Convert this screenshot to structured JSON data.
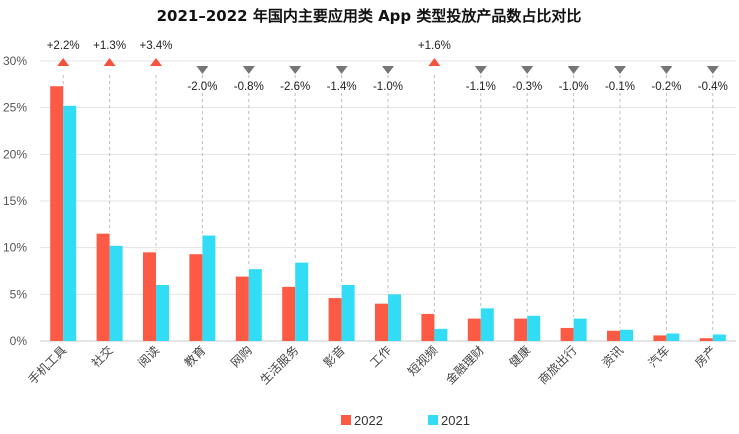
{
  "chart_data": {
    "type": "bar",
    "title": "2021–2022 年国内主要应用类 App 类型投放产品数占比对比",
    "categories": [
      "手机工具",
      "社交",
      "阅读",
      "教育",
      "网购",
      "生活服务",
      "影音",
      "工作",
      "短视频",
      "金融理财",
      "健康",
      "商旅出行",
      "资讯",
      "汽车",
      "房产"
    ],
    "series": [
      {
        "name": "2022",
        "color": "#fd5a45",
        "values": [
          27.3,
          11.5,
          9.5,
          9.3,
          6.9,
          5.8,
          4.6,
          4.0,
          2.9,
          2.4,
          2.4,
          1.4,
          1.1,
          0.6,
          0.3
        ]
      },
      {
        "name": "2021",
        "color": "#33dcf5",
        "values": [
          25.2,
          10.2,
          6.0,
          11.3,
          7.7,
          8.4,
          6.0,
          5.0,
          1.3,
          3.5,
          2.7,
          2.4,
          1.2,
          0.8,
          0.7
        ]
      }
    ],
    "changes": [
      "+2.2%",
      "+1.3%",
      "+3.4%",
      "-2.0%",
      "-0.8%",
      "-2.6%",
      "-1.4%",
      "-1.0%",
      "+1.6%",
      "-1.1%",
      "-0.3%",
      "-1.0%",
      "-0.1%",
      "-0.2%",
      "-0.4%"
    ],
    "change_colors": {
      "up": "#f4533d",
      "down": "#767676"
    },
    "ylim": [
      0,
      30
    ],
    "yticks": [
      "0%",
      "5%",
      "10%",
      "15%",
      "20%",
      "25%",
      "30%"
    ],
    "ytick_values": [
      0,
      5,
      10,
      15,
      20,
      25,
      30
    ],
    "xlabel": "",
    "ylabel": "",
    "grid": true,
    "legend_position": "bottom-center"
  }
}
